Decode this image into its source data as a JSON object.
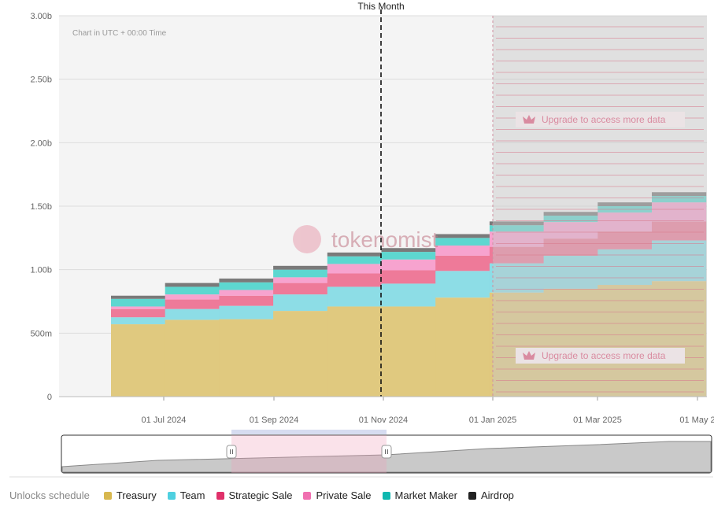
{
  "chart_data": {
    "type": "area",
    "stacked": true,
    "title": "Unlocks schedule",
    "timezone_note": "Chart in UTC + 00:00 Time",
    "marker_label": "This Month",
    "marker_date": "2024-11",
    "upgrade_text": "Upgrade to access more data",
    "watermark": "tokenomist",
    "y_ticks": [
      "0",
      "500m",
      "1.00b",
      "1.50b",
      "2.00b",
      "2.50b",
      "3.00b"
    ],
    "ylim": [
      0,
      3.0
    ],
    "x_ticks": [
      "01 Jul 2024",
      "01 Sep 2024",
      "01 Nov 2024",
      "01 Jan 2025",
      "01 Mar 2025",
      "01 May 2"
    ],
    "categories": [
      "2024-06",
      "2024-07",
      "2024-08",
      "2024-09",
      "2024-10",
      "2024-11",
      "2024-12",
      "2025-01",
      "2025-02",
      "2025-03",
      "2025-04"
    ],
    "series": [
      {
        "name": "Treasury",
        "color": "#e0c97f",
        "values": [
          0.57,
          0.605,
          0.61,
          0.675,
          0.71,
          0.71,
          0.78,
          0.82,
          0.85,
          0.88,
          0.91
        ]
      },
      {
        "name": "Team",
        "color": "#8ddde6",
        "values": [
          0.055,
          0.085,
          0.105,
          0.13,
          0.155,
          0.18,
          0.21,
          0.23,
          0.26,
          0.28,
          0.32
        ]
      },
      {
        "name": "Strategic Sale",
        "color": "#ee7a99",
        "values": [
          0.065,
          0.075,
          0.08,
          0.09,
          0.105,
          0.105,
          0.12,
          0.13,
          0.135,
          0.14,
          0.15
        ]
      },
      {
        "name": "Private Sale",
        "color": "#f7a3cf",
        "values": [
          0.02,
          0.04,
          0.045,
          0.045,
          0.075,
          0.085,
          0.08,
          0.12,
          0.13,
          0.15,
          0.15
        ]
      },
      {
        "name": "Market Maker",
        "color": "#5dd7d0",
        "values": [
          0.06,
          0.06,
          0.06,
          0.06,
          0.06,
          0.06,
          0.06,
          0.05,
          0.05,
          0.05,
          0.05
        ]
      },
      {
        "name": "Airdrop",
        "color": "#7a7a7a",
        "values": [
          0.025,
          0.03,
          0.03,
          0.03,
          0.03,
          0.03,
          0.03,
          0.03,
          0.03,
          0.03,
          0.03
        ]
      }
    ],
    "legend_placement": "bottom"
  },
  "legend": {
    "label": "Unlocks schedule",
    "items": [
      {
        "name": "Treasury",
        "color": "#d8b84f"
      },
      {
        "name": "Team",
        "color": "#4fd0e0"
      },
      {
        "name": "Strategic Sale",
        "color": "#e0306a"
      },
      {
        "name": "Private Sale",
        "color": "#f070b0"
      },
      {
        "name": "Market Maker",
        "color": "#10b8b0"
      },
      {
        "name": "Airdrop",
        "color": "#222222"
      }
    ]
  }
}
